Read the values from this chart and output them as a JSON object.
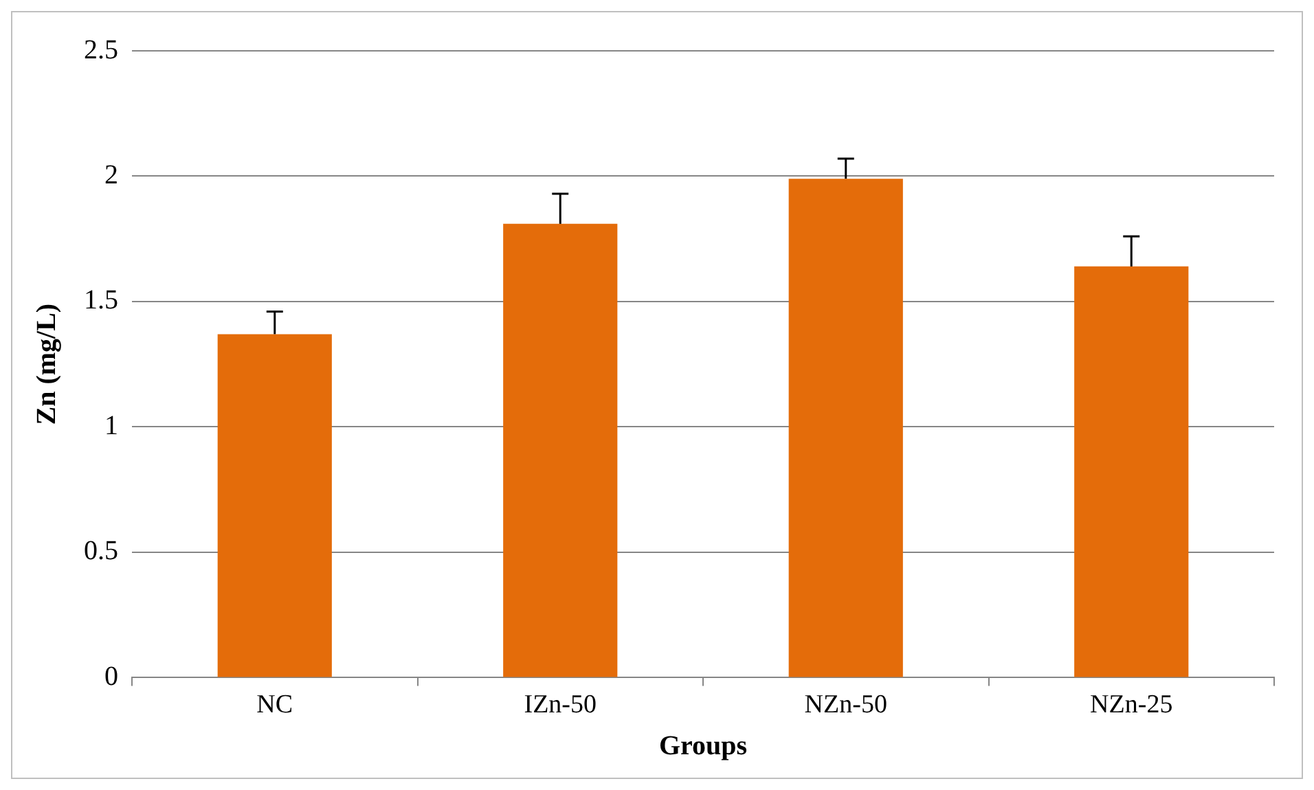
{
  "chart_data": {
    "type": "bar",
    "xlabel": "Groups",
    "ylabel": "Zn (mg/L)",
    "categories": [
      "NC",
      "IZn-50",
      "NZn-50",
      "NZn-25"
    ],
    "values": [
      1.37,
      1.81,
      1.99,
      1.64
    ],
    "errors": [
      [
        1.37,
        1.46
      ],
      [
        1.81,
        1.93
      ],
      [
        1.99,
        2.07
      ],
      [
        1.64,
        1.76
      ]
    ],
    "color": "#e46c0a",
    "ylim": [
      0,
      2.5
    ],
    "yticks": [
      0,
      0.5,
      1,
      1.5,
      2,
      2.5
    ],
    "grid": "y",
    "legend": false
  }
}
